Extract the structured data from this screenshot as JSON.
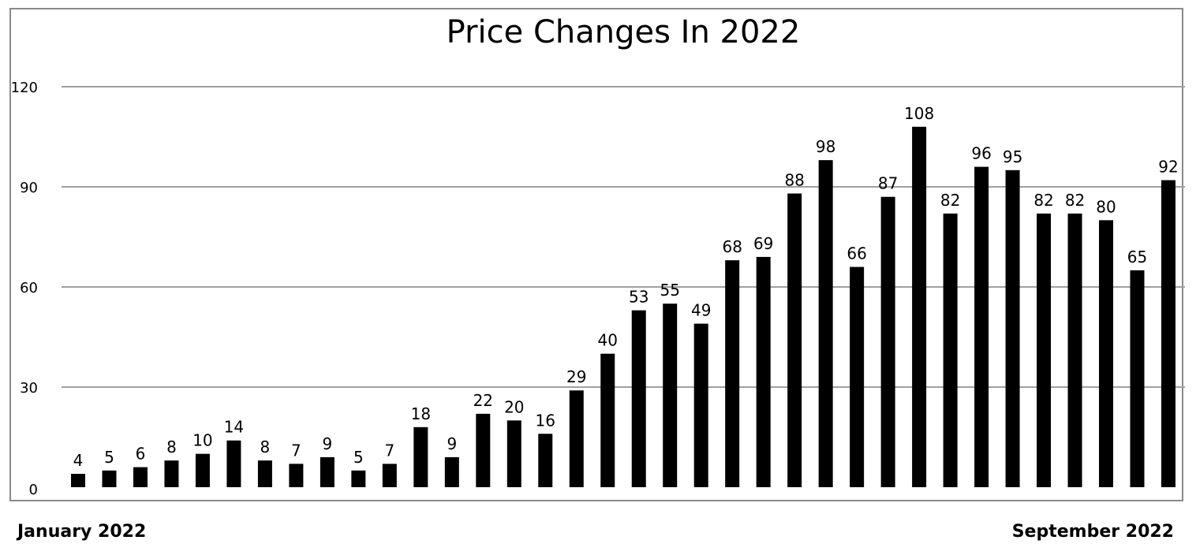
{
  "chart_data": {
    "type": "bar",
    "title": "Price Changes In 2022",
    "xlabel": "",
    "ylabel": "",
    "ylim": [
      0,
      120
    ],
    "yticks": [
      0,
      30,
      60,
      90,
      120
    ],
    "grid": true,
    "bar_color": "#000000",
    "grid_color": "#a0a0a0",
    "values": [
      4,
      5,
      6,
      8,
      10,
      14,
      8,
      7,
      9,
      5,
      7,
      18,
      9,
      22,
      20,
      16,
      29,
      40,
      53,
      55,
      49,
      68,
      69,
      88,
      98,
      66,
      87,
      108,
      82,
      96,
      95,
      82,
      82,
      80,
      65,
      92
    ]
  },
  "footer": {
    "start_label": "January 2022",
    "end_label": "September 2022"
  }
}
